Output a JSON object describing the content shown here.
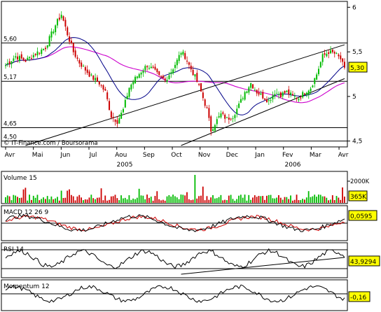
{
  "chart_data": [
    {
      "type": "candlestick",
      "panel": "price",
      "credit": "© IT-Finance.com / Boursorama",
      "month_labels": [
        "Avr",
        "Mai",
        "Jun",
        "Jul",
        "Aou",
        "Sep",
        "Oct",
        "Nov",
        "Dec",
        "Jan",
        "Fev",
        "Mar",
        "Avr"
      ],
      "year_labels": [
        "2005",
        "2006"
      ],
      "y_ticks": [
        "6",
        "5,5",
        "5",
        "4,5"
      ],
      "y_tick_values": [
        6,
        5.5,
        5,
        4.5
      ],
      "ylim": [
        4.45,
        6.05
      ],
      "level_labels": [
        "5,60",
        "5,17",
        "4,65",
        "4,50"
      ],
      "level_values": [
        5.6,
        5.17,
        4.65,
        4.5
      ],
      "last_price": "5,30",
      "last_price_value": 5.3,
      "colors": {
        "up": "#00bb00",
        "down": "#cc0000",
        "ma_short": "#000088",
        "ma_long": "#cc00cc",
        "trend": "#000000"
      },
      "close_keypoints": [
        [
          0,
          5.35
        ],
        [
          5,
          5.45
        ],
        [
          10,
          5.4
        ],
        [
          15,
          5.48
        ],
        [
          20,
          5.55
        ],
        [
          25,
          5.8
        ],
        [
          28,
          5.92
        ],
        [
          31,
          5.7
        ],
        [
          34,
          5.5
        ],
        [
          37,
          5.38
        ],
        [
          40,
          5.3
        ],
        [
          43,
          5.22
        ],
        [
          47,
          5.15
        ],
        [
          50,
          5.05
        ],
        [
          53,
          4.78
        ],
        [
          56,
          4.72
        ],
        [
          59,
          4.85
        ],
        [
          62,
          5.1
        ],
        [
          65,
          5.2
        ],
        [
          68,
          5.28
        ],
        [
          71,
          5.35
        ],
        [
          74,
          5.3
        ],
        [
          77,
          5.22
        ],
        [
          80,
          5.18
        ],
        [
          83,
          5.28
        ],
        [
          86,
          5.4
        ],
        [
          88,
          5.5
        ],
        [
          90,
          5.45
        ],
        [
          92,
          5.35
        ],
        [
          95,
          5.22
        ],
        [
          98,
          5.05
        ],
        [
          101,
          4.85
        ],
        [
          103,
          4.62
        ],
        [
          105,
          4.7
        ],
        [
          108,
          4.8
        ],
        [
          111,
          4.75
        ],
        [
          114,
          4.78
        ],
        [
          117,
          4.9
        ],
        [
          120,
          5.05
        ],
        [
          123,
          5.15
        ],
        [
          126,
          5.05
        ],
        [
          129,
          5.0
        ],
        [
          132,
          4.95
        ],
        [
          135,
          5.05
        ],
        [
          138,
          5.02
        ],
        [
          141,
          5.05
        ],
        [
          144,
          5.0
        ],
        [
          147,
          4.98
        ],
        [
          150,
          5.05
        ],
        [
          153,
          5.1
        ],
        [
          156,
          5.25
        ],
        [
          159,
          5.45
        ],
        [
          162,
          5.5
        ],
        [
          165,
          5.48
        ],
        [
          168,
          5.42
        ],
        [
          170,
          5.3
        ]
      ],
      "n_bars": 171
    },
    {
      "type": "bar",
      "panel": "volume",
      "title": "Volume 15",
      "y_tick": "2000K",
      "last_value": "365K",
      "last_value_number": 365
    },
    {
      "type": "line",
      "panel": "macd",
      "title": "MACD 12 26 9",
      "last_value": "0,0595",
      "last_value_number": 0.0595
    },
    {
      "type": "line",
      "panel": "rsi",
      "title": "RSI 14",
      "last_value": "43,9294",
      "last_value_number": 43.9294
    },
    {
      "type": "line",
      "panel": "momentum",
      "title": "Momentum 12",
      "last_value": "-0,16",
      "last_value_number": -0.16
    }
  ]
}
